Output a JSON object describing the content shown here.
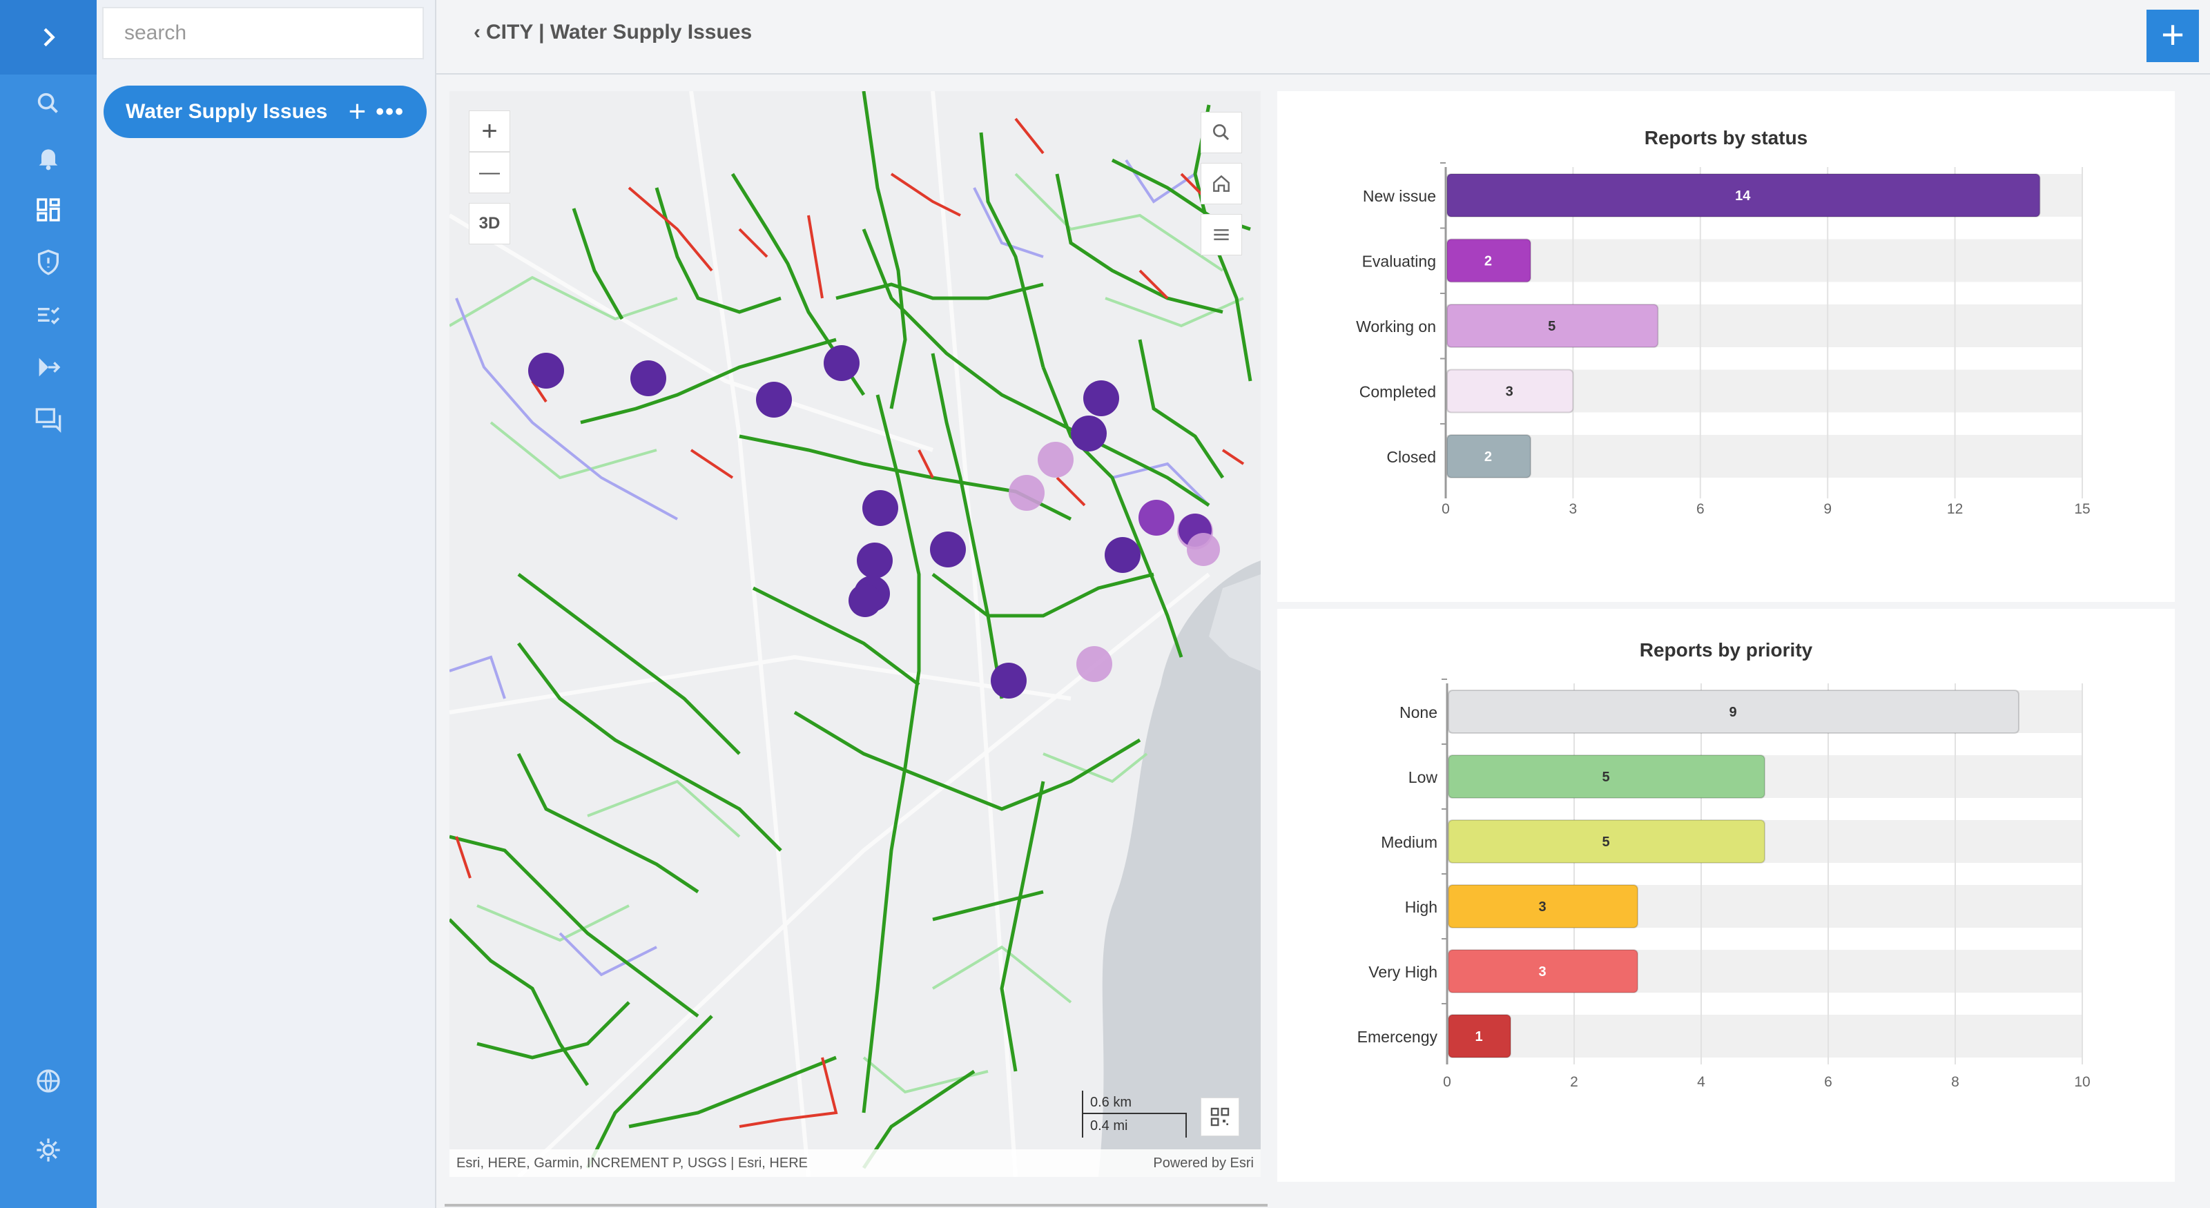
{
  "sidebar": {
    "search_placeholder": "search",
    "layer_label": "Water Supply Issues",
    "layer_add_icon": "+",
    "layer_more_icon": "•••"
  },
  "header": {
    "back_icon": "‹",
    "title": "CITY | Water Supply Issues",
    "add_icon": "+"
  },
  "map": {
    "controls": {
      "zoom_in": "+",
      "zoom_out": "—",
      "mode_3d": "3D"
    },
    "scale": {
      "km": "0.6 km",
      "mi": "0.4 mi"
    },
    "attribution": "Esri, HERE, Garmin, INCREMENT P, USGS | Esri, HERE",
    "powered_by": "Powered by Esri"
  },
  "chart_data": [
    {
      "type": "bar",
      "orientation": "horizontal",
      "title": "Reports by status",
      "categories": [
        "New issue",
        "Evaluating",
        "Working on",
        "Completed",
        "Closed"
      ],
      "values": [
        14,
        2,
        5,
        3,
        2
      ],
      "colors": [
        "#6b3aa0",
        "#a83fbf",
        "#d6a2de",
        "#f3e6f3",
        "#9fb0b7"
      ],
      "label_colors": [
        "#ffffff",
        "#ffffff",
        "#333333",
        "#333333",
        "#ffffff"
      ],
      "xlim": [
        0,
        15
      ],
      "ticks": [
        0,
        3,
        6,
        9,
        12,
        15
      ],
      "grid": true
    },
    {
      "type": "bar",
      "orientation": "horizontal",
      "title": "Reports by priority",
      "categories": [
        "None",
        "Low",
        "Medium",
        "High",
        "Very High",
        "Emercengy"
      ],
      "values": [
        9,
        5,
        5,
        3,
        3,
        1
      ],
      "colors": [
        "#e1e2e4",
        "#96d192",
        "#dde476",
        "#fbbd30",
        "#ef6a6a",
        "#cc3b3b"
      ],
      "label_colors": [
        "#333333",
        "#333333",
        "#333333",
        "#333333",
        "#ffffff",
        "#ffffff"
      ],
      "xlim": [
        0,
        10
      ],
      "ticks": [
        0,
        2,
        4,
        6,
        8,
        10
      ],
      "grid": true
    }
  ]
}
